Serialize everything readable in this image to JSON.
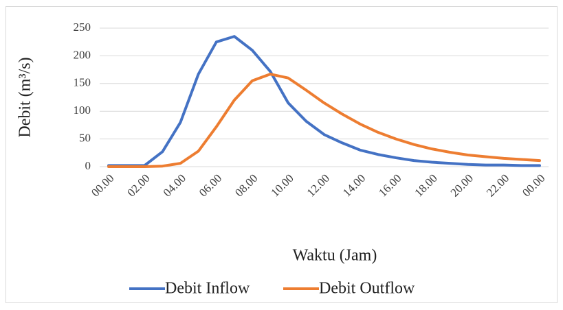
{
  "chart_data": {
    "type": "line",
    "x_label": "Waktu (Jam)",
    "y_label": "Debit (m³/s)",
    "categories": [
      "00.00",
      null,
      "02.00",
      null,
      "04.00",
      null,
      "06.00",
      null,
      "08.00",
      null,
      "10.00",
      null,
      "12.00",
      null,
      "14.00",
      null,
      "16.00",
      null,
      "18.00",
      null,
      "20.00",
      null,
      "22.00",
      null,
      "00.00"
    ],
    "series": [
      {
        "name": "Debit Inflow",
        "color": "#4472c4",
        "values": [
          2,
          2,
          2,
          27,
          80,
          167,
          225,
          235,
          210,
          172,
          115,
          82,
          58,
          43,
          30,
          22,
          16,
          11,
          8,
          6,
          4,
          3,
          3,
          2,
          2
        ]
      },
      {
        "name": "Debit Outflow",
        "color": "#ed7d31",
        "values": [
          0,
          0,
          0,
          1,
          6,
          28,
          72,
          120,
          155,
          167,
          160,
          138,
          115,
          95,
          77,
          62,
          50,
          40,
          32,
          26,
          21,
          18,
          15,
          13,
          11
        ]
      }
    ],
    "ylim": [
      0,
      250
    ],
    "yticks": [
      0,
      50,
      100,
      150,
      200,
      250
    ],
    "grid": true,
    "legend": "bottom"
  }
}
